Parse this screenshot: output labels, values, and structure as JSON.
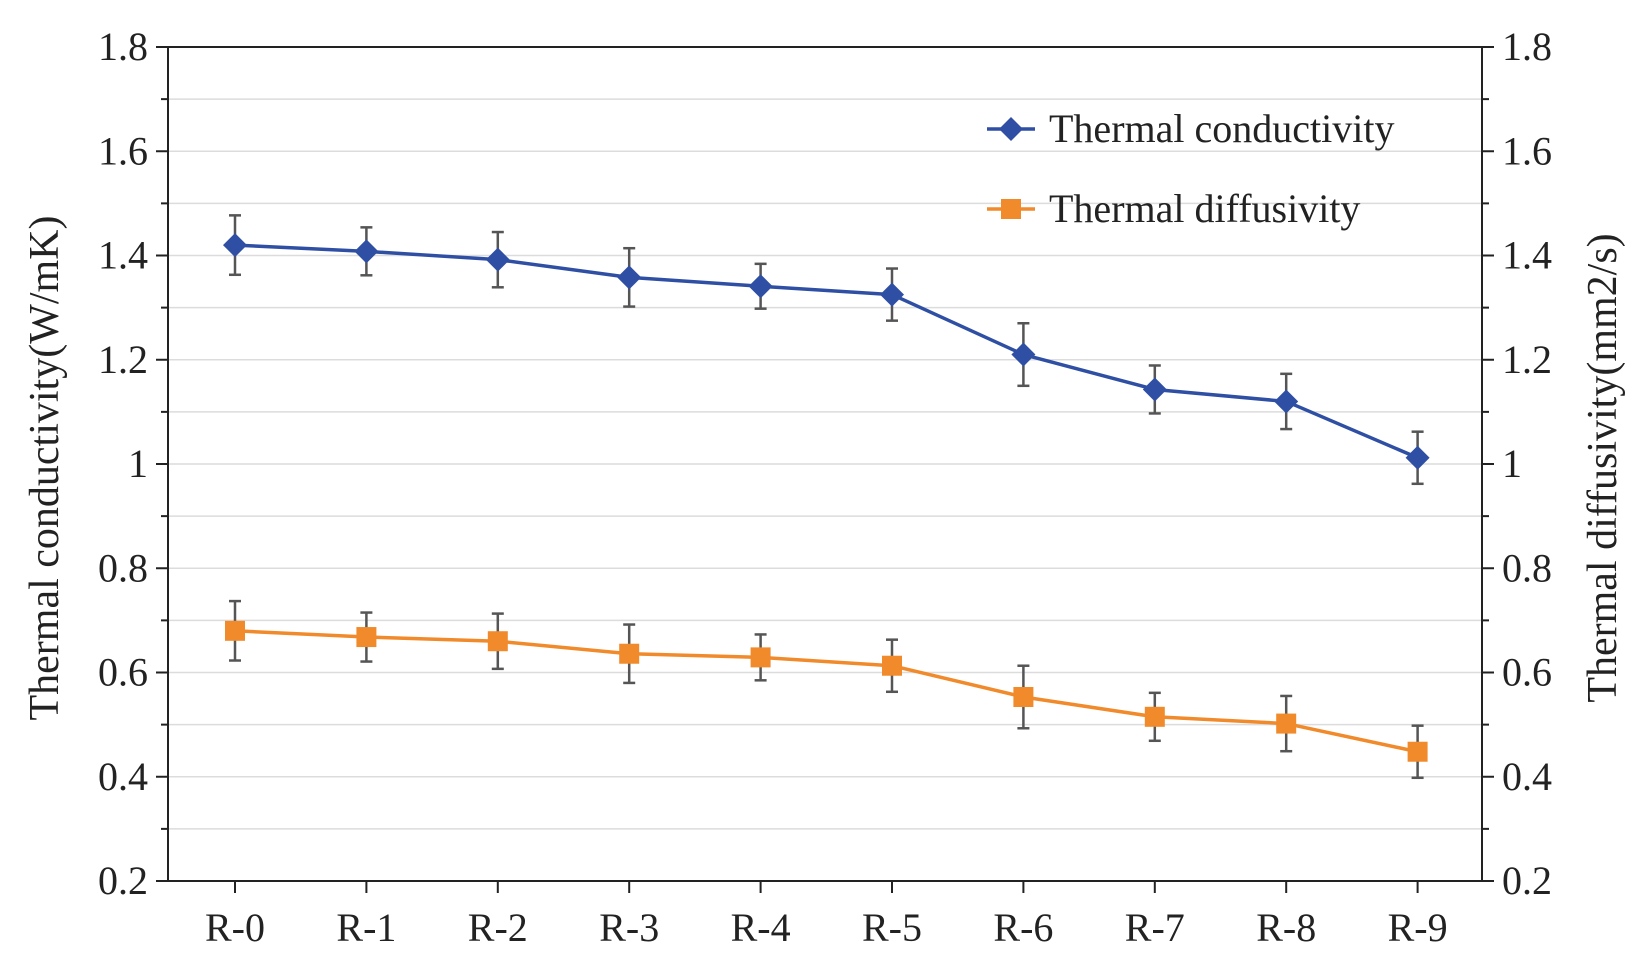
{
  "chart_data": {
    "type": "line",
    "categories": [
      "R-0",
      "R-1",
      "R-2",
      "R-3",
      "R-4",
      "R-5",
      "R-6",
      "R-7",
      "R-8",
      "R-9"
    ],
    "ylabel_left": "Thermal conductivity(W/mK)",
    "ylabel_right": "Thermal diffusivity(mm2/s)",
    "ylim": [
      0.2,
      1.8
    ],
    "yticks": [
      0.2,
      0.4,
      0.6,
      0.8,
      1.0,
      1.2,
      1.4,
      1.6,
      1.8
    ],
    "ytick_labels": [
      "0.2",
      "0.4",
      "0.6",
      "0.8",
      "1",
      "1.2",
      "1.4",
      "1.6",
      "1.8"
    ],
    "grid": true,
    "legend_position": "top-right",
    "series": [
      {
        "name": "Thermal conductivity",
        "color": "#2e4fa3",
        "marker": "diamond",
        "values": [
          1.42,
          1.408,
          1.392,
          1.358,
          1.341,
          1.325,
          1.21,
          1.143,
          1.12,
          1.012
        ],
        "errors": [
          0.057,
          0.046,
          0.053,
          0.056,
          0.043,
          0.05,
          0.06,
          0.046,
          0.053,
          0.05
        ]
      },
      {
        "name": "Thermal diffusivity",
        "color": "#f08a2b",
        "marker": "square",
        "values": [
          0.68,
          0.668,
          0.66,
          0.636,
          0.629,
          0.613,
          0.553,
          0.515,
          0.502,
          0.448
        ],
        "errors": [
          0.057,
          0.047,
          0.053,
          0.056,
          0.044,
          0.05,
          0.06,
          0.046,
          0.053,
          0.05
        ]
      }
    ]
  }
}
